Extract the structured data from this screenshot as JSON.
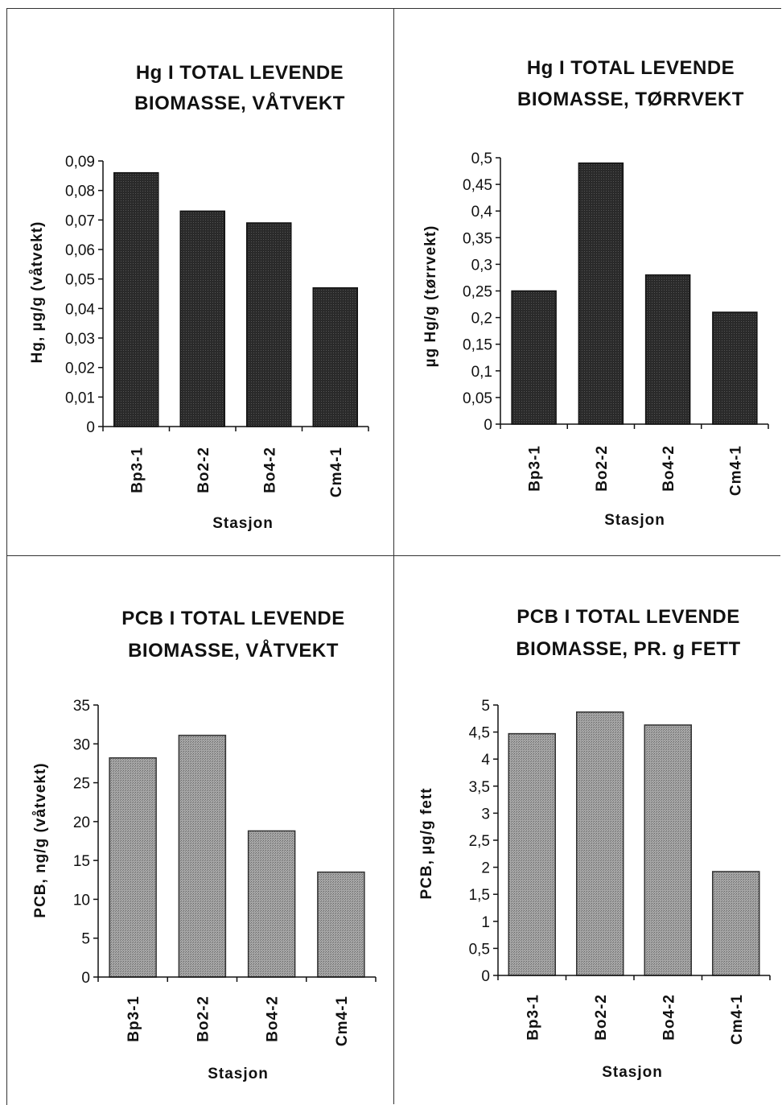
{
  "colors": {
    "dark_bar": "#2a2a2a",
    "light_bar": "#a6a6a6"
  },
  "chart_data": [
    {
      "type": "bar",
      "title_lines": [
        "Hg I TOTAL LEVENDE",
        "BIOMASSE,  VÅTVEKT"
      ],
      "categories": [
        "Bp3-1",
        "Bo2-2",
        "Bo4-2",
        "Cm4-1"
      ],
      "values": [
        0.086,
        0.073,
        0.069,
        0.047
      ],
      "ylabel": "Hg,  µg/g  (våtvekt)",
      "xlabel": "Stasjon",
      "ylim": [
        0,
        0.09
      ],
      "yticks": [
        "0",
        "0,01",
        "0,02",
        "0,03",
        "0,04",
        "0,05",
        "0,06",
        "0,07",
        "0,08",
        "0,09"
      ],
      "bar_style": "dark",
      "grid": false
    },
    {
      "type": "bar",
      "title_lines": [
        "Hg I TOTAL LEVENDE",
        "BIOMASSE,  TØRRVEKT"
      ],
      "categories": [
        "Bp3-1",
        "Bo2-2",
        "Bo4-2",
        "Cm4-1"
      ],
      "values": [
        0.25,
        0.49,
        0.28,
        0.21
      ],
      "ylabel": "µg  Hg/g  (tørrvekt)",
      "xlabel": "Stasjon",
      "ylim": [
        0,
        0.5
      ],
      "yticks": [
        "0",
        "0,05",
        "0,1",
        "0,15",
        "0,2",
        "0,25",
        "0,3",
        "0,35",
        "0,4",
        "0,45",
        "0,5"
      ],
      "bar_style": "dark",
      "grid": false
    },
    {
      "type": "bar",
      "title_lines": [
        "PCB I TOTAL LEVENDE",
        "BIOMASSE,  VÅTVEKT"
      ],
      "categories": [
        "Bp3-1",
        "Bo2-2",
        "Bo4-2",
        "Cm4-1"
      ],
      "values": [
        28.2,
        31.1,
        18.8,
        13.5
      ],
      "ylabel": "PCB,  ng/g  (våtvekt)",
      "xlabel": "Stasjon",
      "ylim": [
        0,
        35
      ],
      "yticks": [
        "0",
        "5",
        "10",
        "15",
        "20",
        "25",
        "30",
        "35"
      ],
      "bar_style": "light",
      "grid": false
    },
    {
      "type": "bar",
      "title_lines": [
        "PCB I TOTAL LEVENDE",
        "BIOMASSE, PR. g FETT"
      ],
      "categories": [
        "Bp3-1",
        "Bo2-2",
        "Bo4-2",
        "Cm4-1"
      ],
      "values": [
        4.47,
        4.87,
        4.63,
        1.92
      ],
      "ylabel": "PCB,  µg/g  fett",
      "xlabel": "Stasjon",
      "ylim": [
        0,
        5
      ],
      "yticks": [
        "0",
        "0,5",
        "1",
        "1,5",
        "2",
        "2,5",
        "3",
        "3,5",
        "4",
        "4,5",
        "5"
      ],
      "bar_style": "light",
      "grid": false
    }
  ]
}
